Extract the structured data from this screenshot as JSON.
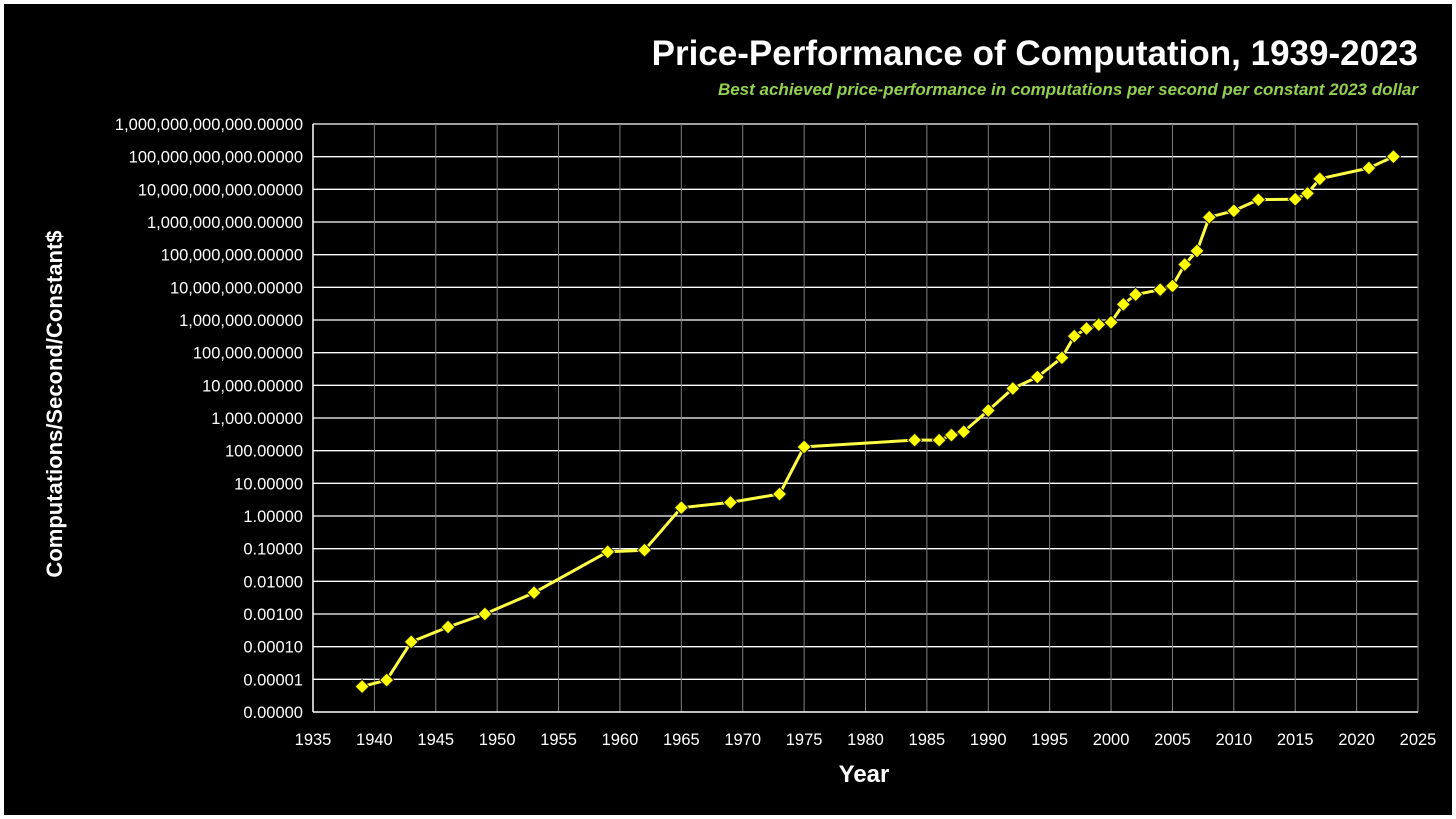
{
  "chart_data": {
    "type": "line",
    "title": "Price-Performance of Computation, 1939-2023",
    "subtitle": "Best achieved price-performance in computations per second per constant 2023 dollar",
    "xlabel": "Year",
    "ylabel": "Computations/Second/Constant$",
    "x_ticks": [
      "1935",
      "1940",
      "1945",
      "1950",
      "1955",
      "1960",
      "1965",
      "1970",
      "1975",
      "1980",
      "1985",
      "1990",
      "1995",
      "2000",
      "2005",
      "2010",
      "2015",
      "2020",
      "2025"
    ],
    "xlim": [
      1935,
      2025
    ],
    "y_scale": "log",
    "ylim": [
      1e-06,
      1000000000000
    ],
    "y_tick_values": [
      1e-06,
      1e-05,
      0.0001,
      0.001,
      0.01,
      0.1,
      1,
      10,
      100,
      1000,
      10000,
      100000,
      1000000,
      10000000,
      100000000,
      1000000000,
      10000000000,
      100000000000,
      1000000000000
    ],
    "y_tick_labels": [
      "0.00000",
      "0.00001",
      "0.00010",
      "0.00100",
      "0.01000",
      "0.10000",
      "1.00000",
      "10.00000",
      "100.00000",
      "1,000.00000",
      "10,000.00000",
      "100,000.00000",
      "1,000,000.00000",
      "10,000,000.00000",
      "100,000,000.00000",
      "1,000,000,000.00000",
      "10,000,000,000.00000",
      "100,000,000,000.00000",
      "1,000,000,000,000.00000"
    ],
    "grid": true,
    "legend": "none",
    "series": [
      {
        "x": [
          1939,
          1941,
          1943,
          1946,
          1949,
          1953,
          1959,
          1962,
          1965,
          1969,
          1973,
          1975,
          1984,
          1986,
          1987,
          1988,
          1990,
          1992,
          1994,
          1996,
          1997,
          1998,
          1999,
          2000,
          2001,
          2002,
          2004,
          2005,
          2006,
          2007,
          2008,
          2010,
          2012,
          2015,
          2016,
          2017,
          2021,
          2023
        ],
        "values": [
          6e-06,
          9.5e-06,
          0.00014,
          0.0004,
          0.001,
          0.0045,
          0.08,
          0.09,
          1.8,
          2.6,
          4.7,
          130,
          210,
          210,
          300,
          380,
          1700,
          8000,
          18000,
          70000,
          320000,
          550000,
          720000,
          850000,
          3000000,
          6000000,
          8500000,
          11000000,
          50000000,
          130000000,
          1400000000,
          2200000000,
          4800000000,
          5000000000,
          7500000000,
          21000000000,
          45000000000,
          100000000000
        ]
      }
    ],
    "colors": {
      "background": "#000000",
      "line": "#FFFF44",
      "marker": "#FFFF00",
      "subtitle": "#92D050",
      "grid": "#FFFFFF",
      "text": "#FFFFFF"
    }
  }
}
